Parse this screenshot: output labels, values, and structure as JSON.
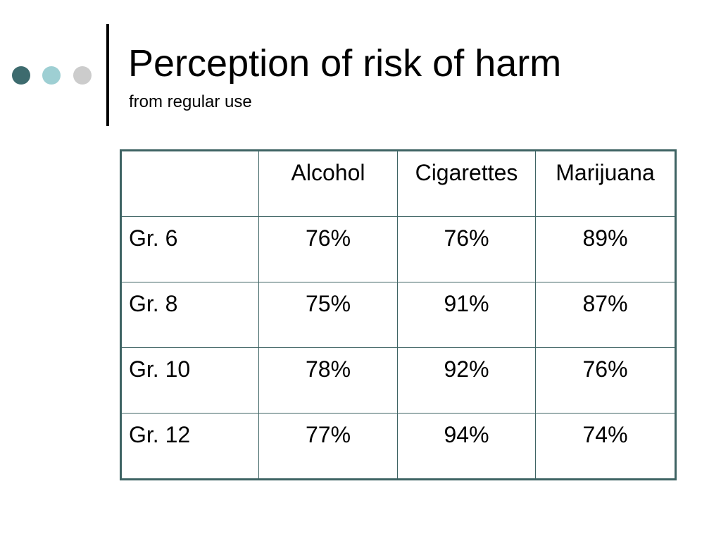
{
  "slide": {
    "title": "Perception of risk of harm",
    "subtitle": "from regular use"
  },
  "decoration": {
    "dot_colors": [
      "#3d6b6e",
      "#9ecfd3",
      "#cccccc"
    ],
    "rule_color": "#000000",
    "table_border_color": "#3e6363"
  },
  "table": {
    "corner": "",
    "columns": [
      "Alcohol",
      "Cigarettes",
      "Marijuana"
    ],
    "rows": [
      {
        "label": "Gr. 6",
        "values": [
          "76%",
          "76%",
          "89%"
        ]
      },
      {
        "label": "Gr. 8",
        "values": [
          "75%",
          "91%",
          "87%"
        ]
      },
      {
        "label": "Gr. 10",
        "values": [
          "78%",
          "92%",
          "76%"
        ]
      },
      {
        "label": "Gr. 12",
        "values": [
          "77%",
          "94%",
          "74%"
        ]
      }
    ]
  }
}
